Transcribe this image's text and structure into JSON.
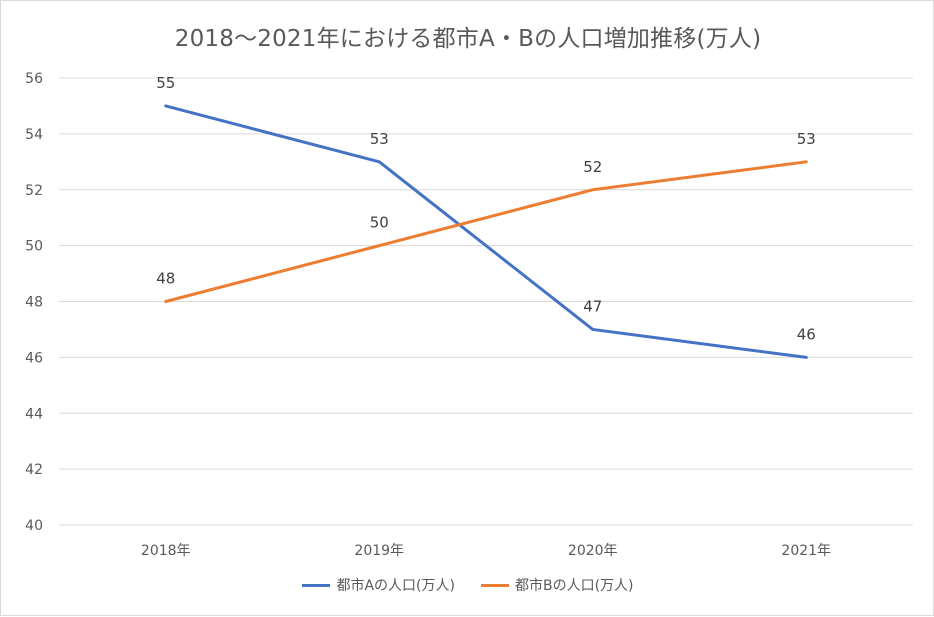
{
  "chart_data": {
    "type": "line",
    "title": "2018〜2021年における都市A・Bの人口増加推移(万人)",
    "categories": [
      "2018年",
      "2019年",
      "2020年",
      "2021年"
    ],
    "series": [
      {
        "name": "都市Aの人口(万人)",
        "values": [
          55,
          53,
          47,
          46
        ],
        "color": "#4472c4"
      },
      {
        "name": "都市Bの人口(万人)",
        "values": [
          48,
          50,
          52,
          53
        ],
        "color": "#ed7d31"
      }
    ],
    "ylim": [
      40,
      56
    ],
    "yticks": [
      40,
      42,
      44,
      46,
      48,
      50,
      52,
      54,
      56
    ],
    "xlabel": "",
    "ylabel": "",
    "grid": true,
    "legend_position": "bottom",
    "gridline_color": "#d9d9d9"
  }
}
